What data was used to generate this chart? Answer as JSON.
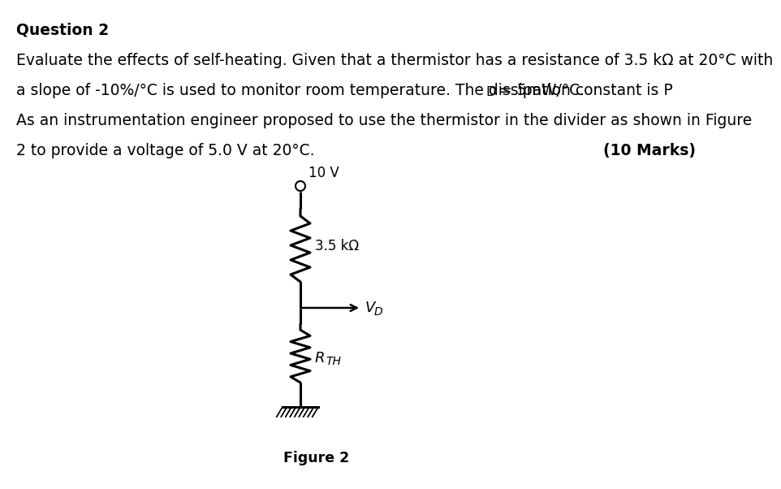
{
  "title": "Question 2",
  "line1": "Evaluate the effects of self-heating. Given that a thermistor has a resistance of 3.5 kΩ at 20°C with",
  "line2a": "a slope of -10%/°C is used to monitor room temperature. The dissipation constant is P",
  "line2b": "D",
  "line2c": " = 5mW/°C.",
  "line3": "As an instrumentation engineer proposed to use the thermistor in the divider as shown in Figure",
  "line4": "2 to provide a voltage of 5.0 V at 20°C.",
  "marks_text": "(10 Marks)",
  "figure_label": "Figure 2",
  "voltage_label": "10 V",
  "resistor1_label": "3.5 kΩ",
  "vd_label": "V",
  "vd_sub": "D",
  "rth_label": "R",
  "rth_sub": "TH",
  "bg_color": "#ffffff",
  "text_color": "#000000"
}
